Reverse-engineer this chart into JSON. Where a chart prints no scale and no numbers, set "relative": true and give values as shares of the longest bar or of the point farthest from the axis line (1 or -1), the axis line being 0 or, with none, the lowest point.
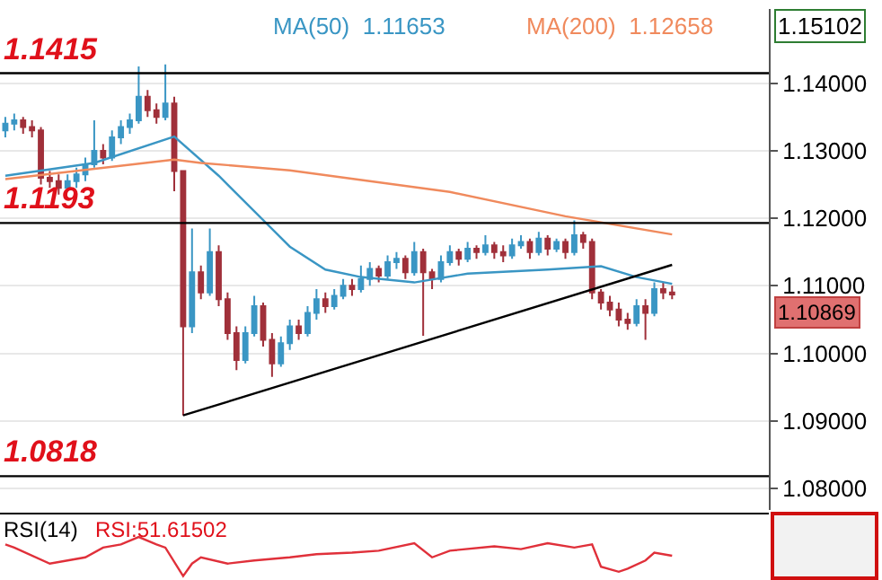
{
  "chart_data": [
    {
      "type": "candlestick",
      "categories": [
        null,
        null,
        null,
        null,
        null,
        null,
        null,
        null,
        null,
        null,
        null,
        null,
        null,
        null,
        null,
        null,
        null,
        null,
        null,
        null,
        null,
        null,
        null,
        null,
        null,
        null,
        null,
        null,
        null,
        null,
        null,
        null,
        null,
        null,
        null,
        null,
        null,
        null,
        null,
        null,
        null,
        null,
        null,
        null,
        null,
        null,
        null,
        null,
        null,
        null,
        null,
        null,
        null,
        null,
        null,
        null,
        null,
        null,
        null,
        null,
        null,
        null,
        null,
        null,
        null,
        null,
        null,
        null,
        null,
        null,
        null,
        null,
        null,
        null,
        null,
        null
      ],
      "ohlc": [
        [
          1.133,
          1.135,
          1.132,
          1.134
        ],
        [
          1.134,
          1.1355,
          1.133,
          1.1345
        ],
        [
          1.1345,
          1.135,
          1.1325,
          1.1335
        ],
        [
          1.1335,
          1.1345,
          1.132,
          1.133
        ],
        [
          1.133,
          1.1335,
          1.125,
          1.126
        ],
        [
          1.126,
          1.127,
          1.1245,
          1.1255
        ],
        [
          1.1255,
          1.1265,
          1.1235,
          1.1245
        ],
        [
          1.1245,
          1.1265,
          1.124,
          1.1255
        ],
        [
          1.1255,
          1.1275,
          1.1245,
          1.1265
        ],
        [
          1.1265,
          1.129,
          1.1255,
          1.128
        ],
        [
          1.128,
          1.1345,
          1.1275,
          1.13
        ],
        [
          1.13,
          1.131,
          1.128,
          1.129
        ],
        [
          1.129,
          1.133,
          1.1285,
          1.132
        ],
        [
          1.132,
          1.1345,
          1.131,
          1.1335
        ],
        [
          1.1335,
          1.1355,
          1.1325,
          1.1345
        ],
        [
          1.1345,
          1.1425,
          1.134,
          1.138
        ],
        [
          1.138,
          1.139,
          1.135,
          1.136
        ],
        [
          1.136,
          1.137,
          1.134,
          1.135
        ],
        [
          1.135,
          1.1428,
          1.1345,
          1.137
        ],
        [
          1.137,
          1.138,
          1.124,
          1.127
        ],
        [
          1.127,
          1.127,
          1.0908,
          1.104
        ],
        [
          1.104,
          1.1185,
          1.103,
          1.112
        ],
        [
          1.112,
          1.113,
          1.108,
          1.109
        ],
        [
          1.109,
          1.1185,
          1.1085,
          1.115
        ],
        [
          1.115,
          1.116,
          1.107,
          1.108
        ],
        [
          1.108,
          1.109,
          1.102,
          1.103
        ],
        [
          1.103,
          1.104,
          1.0975,
          1.099
        ],
        [
          1.099,
          1.104,
          1.0985,
          1.103
        ],
        [
          1.103,
          1.1085,
          1.1025,
          1.107
        ],
        [
          1.107,
          1.1075,
          1.101,
          1.102
        ],
        [
          1.102,
          1.103,
          1.0965,
          1.0985
        ],
        [
          1.0985,
          1.1025,
          1.098,
          1.1015
        ],
        [
          1.1015,
          1.105,
          1.1005,
          1.104
        ],
        [
          1.104,
          1.105,
          1.102,
          1.103
        ],
        [
          1.103,
          1.107,
          1.1025,
          1.106
        ],
        [
          1.106,
          1.1095,
          1.105,
          1.108
        ],
        [
          1.108,
          1.109,
          1.106,
          1.107
        ],
        [
          1.107,
          1.1095,
          1.1065,
          1.1085
        ],
        [
          1.1085,
          1.111,
          1.108,
          1.11
        ],
        [
          1.11,
          1.111,
          1.1085,
          1.1095
        ],
        [
          1.1095,
          1.113,
          1.109,
          1.111
        ],
        [
          1.111,
          1.1135,
          1.11,
          1.1125
        ],
        [
          1.1125,
          1.113,
          1.1105,
          1.1115
        ],
        [
          1.1115,
          1.1145,
          1.111,
          1.1135
        ],
        [
          1.1135,
          1.115,
          1.1125,
          1.114
        ],
        [
          1.114,
          1.1145,
          1.111,
          1.112
        ],
        [
          1.112,
          1.1165,
          1.1115,
          1.115
        ],
        [
          1.115,
          1.1155,
          1.1026,
          1.112
        ],
        [
          1.112,
          1.1125,
          1.1095,
          1.111
        ],
        [
          1.111,
          1.1145,
          1.1105,
          1.1135
        ],
        [
          1.1135,
          1.116,
          1.113,
          1.115
        ],
        [
          1.115,
          1.1155,
          1.113,
          1.114
        ],
        [
          1.114,
          1.1165,
          1.1135,
          1.1155
        ],
        [
          1.1155,
          1.116,
          1.114,
          1.115
        ],
        [
          1.115,
          1.1175,
          1.1145,
          1.116
        ],
        [
          1.116,
          1.1165,
          1.114,
          1.115
        ],
        [
          1.115,
          1.116,
          1.1135,
          1.1145
        ],
        [
          1.1145,
          1.117,
          1.114,
          1.116
        ],
        [
          1.116,
          1.1175,
          1.1155,
          1.1165
        ],
        [
          1.1165,
          1.117,
          1.114,
          1.115
        ],
        [
          1.115,
          1.118,
          1.1145,
          1.117
        ],
        [
          1.117,
          1.1175,
          1.1145,
          1.1155
        ],
        [
          1.1155,
          1.117,
          1.115,
          1.1165
        ],
        [
          1.1165,
          1.117,
          1.114,
          1.115
        ],
        [
          1.115,
          1.1197,
          1.1145,
          1.1175
        ],
        [
          1.1175,
          1.118,
          1.1155,
          1.1165
        ],
        [
          1.1165,
          1.117,
          1.108,
          1.109
        ],
        [
          1.109,
          1.1095,
          1.1065,
          1.1075
        ],
        [
          1.1075,
          1.1085,
          1.1055,
          1.1065
        ],
        [
          1.1065,
          1.1075,
          1.104,
          1.105
        ],
        [
          1.105,
          1.106,
          1.1035,
          1.1045
        ],
        [
          1.1045,
          1.108,
          1.104,
          1.107
        ],
        [
          1.107,
          1.108,
          1.102,
          1.106
        ],
        [
          1.106,
          1.1105,
          1.1055,
          1.1095
        ],
        [
          1.1095,
          1.1105,
          1.108,
          1.109
        ],
        [
          1.109,
          1.11,
          1.108,
          1.1087
        ]
      ],
      "series": [
        {
          "type": "line",
          "name": "MA(50)",
          "color": "#3a96c4",
          "values": [
            1.1263,
            null,
            null,
            null,
            null,
            null,
            null,
            null,
            null,
            null,
            1.1282,
            null,
            null,
            null,
            null,
            null,
            null,
            null,
            null,
            1.1321,
            null,
            null,
            null,
            null,
            1.1263,
            null,
            null,
            null,
            null,
            null,
            null,
            null,
            1.1158,
            null,
            null,
            null,
            1.1124,
            null,
            null,
            null,
            1.1113,
            null,
            null,
            null,
            null,
            null,
            1.1105,
            null,
            null,
            null,
            null,
            null,
            1.1118,
            null,
            null,
            null,
            null,
            null,
            null,
            null,
            null,
            1.1124,
            null,
            null,
            null,
            null,
            null,
            1.1129,
            null,
            null,
            null,
            1.1113,
            null,
            null,
            null,
            1.1103
          ]
        },
        {
          "type": "line",
          "name": "MA(200)",
          "color": "#f08a5d",
          "values": [
            1.1258,
            null,
            null,
            null,
            null,
            null,
            null,
            null,
            null,
            null,
            null,
            null,
            null,
            null,
            null,
            null,
            null,
            null,
            null,
            1.1287,
            null,
            null,
            1.1282,
            null,
            null,
            null,
            null,
            null,
            null,
            null,
            null,
            null,
            1.1271,
            null,
            null,
            null,
            null,
            null,
            null,
            null,
            null,
            null,
            null,
            null,
            null,
            null,
            null,
            null,
            null,
            null,
            1.1239,
            null,
            null,
            null,
            null,
            null,
            null,
            null,
            null,
            null,
            null,
            null,
            null,
            1.1203,
            null,
            null,
            null,
            null,
            null,
            null,
            null,
            null,
            null,
            null,
            null,
            1.1176
          ]
        },
        {
          "type": "line",
          "color": "#000000",
          "values": [
            null,
            null,
            null,
            null,
            null,
            null,
            null,
            null,
            null,
            null,
            null,
            null,
            null,
            null,
            null,
            null,
            null,
            null,
            null,
            null,
            1.0908,
            null,
            null,
            null,
            null,
            null,
            null,
            null,
            null,
            null,
            null,
            null,
            null,
            null,
            null,
            null,
            null,
            null,
            null,
            null,
            null,
            null,
            null,
            null,
            null,
            null,
            null,
            null,
            null,
            null,
            null,
            null,
            null,
            null,
            null,
            null,
            null,
            null,
            null,
            null,
            null,
            null,
            null,
            null,
            null,
            null,
            null,
            null,
            null,
            null,
            null,
            null,
            null,
            null,
            null,
            1.1131
          ]
        }
      ],
      "ylim": [
        1.0768,
        1.151
      ],
      "yticks": [
        {
          "value": 1.08,
          "label": "1.08000"
        },
        {
          "value": 1.09,
          "label": "1.09000"
        },
        {
          "value": 1.1,
          "label": "1.10000"
        },
        {
          "value": 1.11,
          "label": "1.11000"
        },
        {
          "value": 1.12,
          "label": "1.12000"
        },
        {
          "value": 1.13,
          "label": "1.13000"
        },
        {
          "value": 1.14,
          "label": "1.14000"
        }
      ],
      "grid": "y",
      "ref_lines": [
        {
          "axis": "y",
          "value": 1.1415,
          "label": "1.1415",
          "color": "#000000"
        },
        {
          "axis": "y",
          "value": 1.1193,
          "label": "1.1193",
          "color": "#000000"
        },
        {
          "axis": "y",
          "value": 1.0818,
          "label": "1.0818",
          "color": "#000000"
        }
      ],
      "annotations": [
        "1.11653",
        "1.12658",
        "1.10869",
        "1.15102"
      ]
    },
    {
      "type": "line",
      "title": "RSI(14)",
      "relative": true,
      "categories": [
        null,
        null,
        null,
        null,
        null,
        null,
        null,
        null,
        null,
        null,
        null,
        null,
        null,
        null,
        null,
        null,
        null,
        null,
        null,
        null,
        null,
        null,
        null,
        null,
        null,
        null,
        null,
        null,
        null,
        null,
        null,
        null,
        null,
        null,
        null,
        null,
        null,
        null,
        null,
        null,
        null,
        null,
        null,
        null,
        null,
        null,
        null,
        null,
        null,
        null,
        null,
        null,
        null,
        null,
        null,
        null,
        null,
        null,
        null,
        null,
        null,
        null,
        null,
        null,
        null,
        null,
        null,
        null,
        null,
        null,
        null,
        null,
        null,
        null,
        null,
        null
      ],
      "series": [
        {
          "color": "#e0303a",
          "values": [
            0.81,
            0.73,
            null,
            null,
            null,
            0.32,
            null,
            0.4,
            null,
            0.48,
            null,
            0.73,
            null,
            0.81,
            null,
            1,
            null,
            0.81,
            0.73,
            null,
            0,
            0.32,
            0.48,
            null,
            null,
            0.32,
            null,
            null,
            0.4,
            null,
            null,
            null,
            0.48,
            null,
            null,
            0.56,
            null,
            null,
            null,
            0.6,
            null,
            null,
            0.65,
            null,
            null,
            null,
            0.84,
            null,
            0.48,
            null,
            0.65,
            null,
            null,
            null,
            null,
            0.76,
            null,
            null,
            0.69,
            null,
            null,
            0.84,
            null,
            null,
            0.73,
            null,
            0.81,
            0.24,
            null,
            0.11,
            0.19,
            null,
            0.4,
            0.6,
            null,
            0.52
          ]
        }
      ],
      "annotations": [
        "RSI:51.61502"
      ]
    }
  ]
}
